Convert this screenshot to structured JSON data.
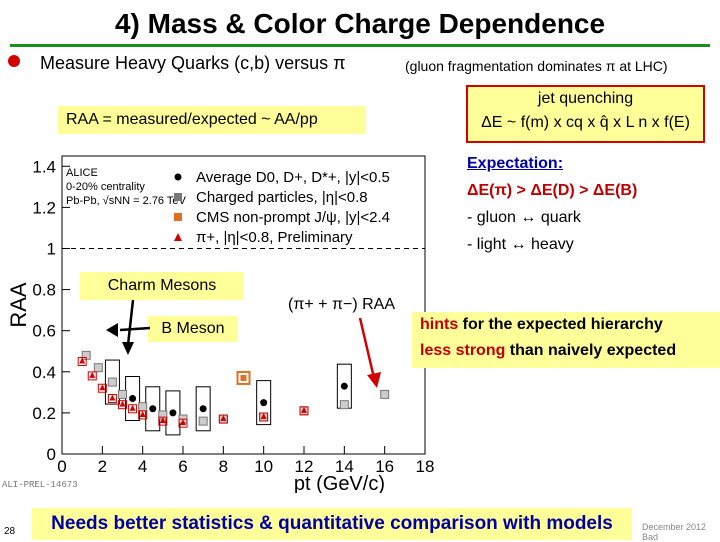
{
  "slide": {
    "title": "4)  Mass & Color Charge Dependence",
    "bullet": "Measure Heavy Quarks (c,b) versus π",
    "bullet_note": "(gluon fragmentation dominates π at LHC)",
    "raa_def": "RAA =  measured/expected ~  AA/pp",
    "jet_quenching_title": "jet quenching",
    "jet_quenching_formula": "ΔE ~  f(m) x cq x q̂ x L n x f(E)",
    "expectation_heading": "Expectation:",
    "expectation_ineq": "ΔE(π) > ΔE(D) > ΔE(B)",
    "expectation_line2": "- gluon ↔ quark",
    "expectation_line3": "- light ↔ heavy",
    "hints_line1_red": "hints",
    "hints_line1_rest": " for the expected hierarchy",
    "hints_line2_red": "less strong",
    "hints_line2_rest": " than naively expected",
    "conclusion": "Needs better statistics & quantitative comparison with models",
    "page_number": "28",
    "footer": "December 2012 Bad",
    "ali_tag": "ALI-PREL-14673"
  },
  "plot_labels": {
    "charm_mesons": "Charm Mesons",
    "b_meson": "B Meson",
    "pi_raa": "(π+ + π−) RAA"
  },
  "chart_data": {
    "type": "scatter",
    "xlabel": "pt (GeV/c)",
    "ylabel": "RAA",
    "xlim": [
      0,
      18
    ],
    "ylim": [
      0,
      1.45
    ],
    "x_ticks": [
      "0",
      "2",
      "4",
      "6",
      "8",
      "10",
      "12",
      "14",
      "16",
      "18"
    ],
    "y_ticks": [
      "0",
      "0.2",
      "0.4",
      "0.6",
      "0.8",
      "1",
      "1.2",
      "1.4"
    ],
    "annotations": [
      "ALICE",
      "0-20% centrality",
      "Pb-Pb, √sNN = 2.76 TeV"
    ],
    "legend": [
      "Average D0, D+, D*+, |y|<0.5",
      "Charged particles, |η|<0.8",
      "CMS non-prompt J/ψ, |y|<2.4",
      "π+, |η|<0.8, Preliminary"
    ],
    "series": [
      {
        "name": "Average D0, D+, D*+, |y|<0.5",
        "color": "#000000",
        "x": [
          2.5,
          3.5,
          4.5,
          5.5,
          7,
          10,
          14
        ],
        "y": [
          0.35,
          0.27,
          0.22,
          0.2,
          0.22,
          0.25,
          0.33
        ]
      },
      {
        "name": "Charged particles, |η|<0.8",
        "color": "#777777",
        "x": [
          1.2,
          1.8,
          2.5,
          3,
          4,
          5,
          6,
          7,
          8,
          10,
          12,
          14,
          16
        ],
        "y": [
          0.48,
          0.42,
          0.35,
          0.29,
          0.23,
          0.19,
          0.17,
          0.16,
          0.17,
          0.18,
          0.21,
          0.24,
          0.29
        ]
      },
      {
        "name": "CMS non-prompt J/ψ, |y|<2.4",
        "color": "#e07020",
        "x": [
          9
        ],
        "y": [
          0.37
        ]
      },
      {
        "name": "π+, |η|<0.8, Preliminary",
        "color": "#d40000",
        "x": [
          1.0,
          1.5,
          2.0,
          2.5,
          3.0,
          3.5,
          4.0,
          5.0,
          6.0,
          8.0,
          10,
          12
        ],
        "y": [
          0.45,
          0.38,
          0.32,
          0.27,
          0.24,
          0.22,
          0.19,
          0.16,
          0.15,
          0.17,
          0.18,
          0.21
        ]
      }
    ]
  }
}
